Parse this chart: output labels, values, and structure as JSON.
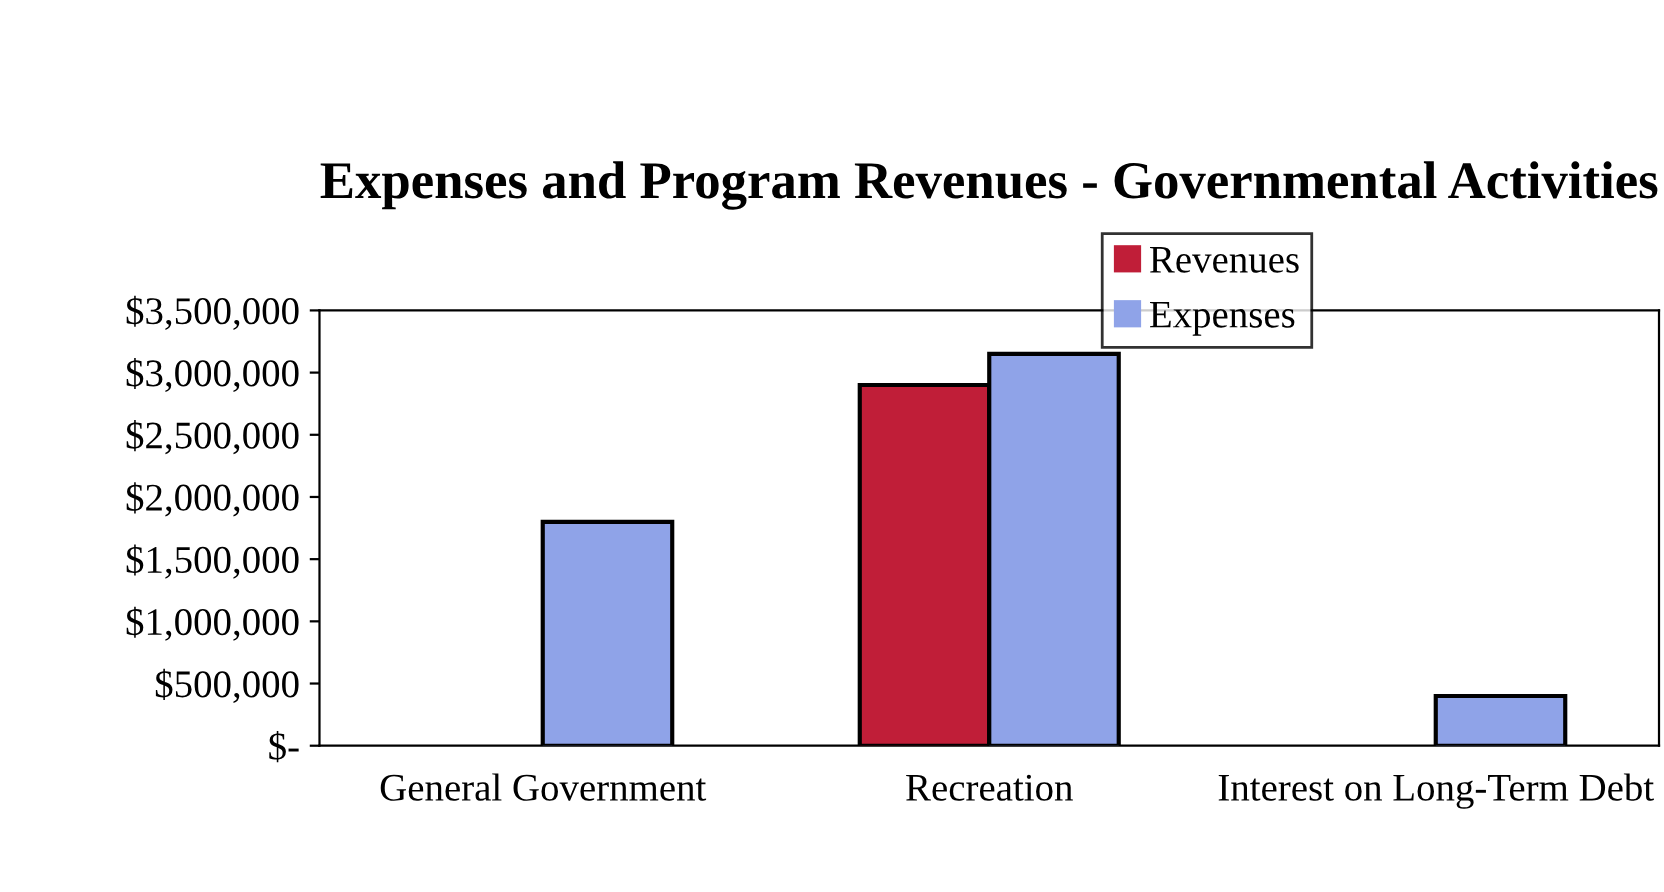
{
  "chart_data": {
    "type": "bar",
    "title": "Expenses and Program Revenues - Governmental Activities",
    "categories": [
      "General Government",
      "Recreation",
      "Interest on Long-Term Debt"
    ],
    "series": [
      {
        "name": "Revenues",
        "color": "#c01e38",
        "values": [
          null,
          2900000,
          null
        ]
      },
      {
        "name": "Expenses",
        "color": "#8fa3e8",
        "values": [
          1800000,
          3150000,
          400000
        ]
      }
    ],
    "ylim": [
      0,
      3500000
    ],
    "yticks": [
      {
        "value": 0,
        "label": "$-"
      },
      {
        "value": 500000,
        "label": "$500,000"
      },
      {
        "value": 1000000,
        "label": "$1,000,000"
      },
      {
        "value": 1500000,
        "label": "$1,500,000"
      },
      {
        "value": 2000000,
        "label": "$2,000,000"
      },
      {
        "value": 2500000,
        "label": "$2,500,000"
      },
      {
        "value": 3000000,
        "label": "$3,000,000"
      },
      {
        "value": 3500000,
        "label": "$3,500,000"
      }
    ],
    "grid": false,
    "legend": "top right"
  }
}
